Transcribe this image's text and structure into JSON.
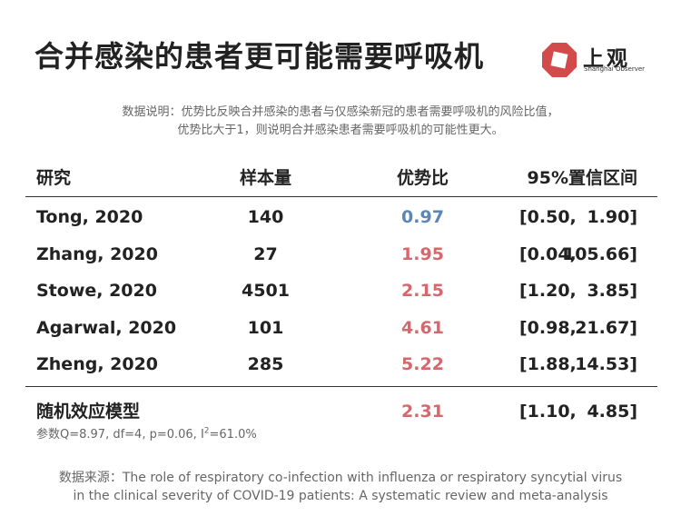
{
  "title": "合并感染的患者更可能需要呼吸机",
  "logo": {
    "name": "上观",
    "subtitle": "Shanghai Observer",
    "icon": "octagon-square-logo",
    "color": "#d24a4a"
  },
  "note": {
    "line1": "数据说明：优势比反映合并感染的患者与仅感染新冠的患者需要呼吸机的风险比值，",
    "line2": "优势比大于1，则说明合并感染患者需要呼吸机的可能性更大。"
  },
  "chart_data": {
    "type": "table",
    "columns": [
      "研究",
      "样本量",
      "优势比",
      "95%置信区间"
    ],
    "rows": [
      {
        "study": "Tong, 2020",
        "n": "140",
        "or": "0.97",
        "ci_low": "[0.50,",
        "ci_high": "1.90]",
        "or_color": "#5b86b7"
      },
      {
        "study": "Zhang, 2020",
        "n": "27",
        "or": "1.95",
        "ci_low": "[0.04,",
        "ci_high": "105.66]",
        "or_color": "#d6676d"
      },
      {
        "study": "Stowe, 2020",
        "n": "4501",
        "or": "2.15",
        "ci_low": "[1.20,",
        "ci_high": "3.85]",
        "or_color": "#d6676d"
      },
      {
        "study": "Agarwal, 2020",
        "n": "101",
        "or": "4.61",
        "ci_low": "[0.98,",
        "ci_high": "21.67]",
        "or_color": "#d6676d"
      },
      {
        "study": "Zheng, 2020",
        "n": "285",
        "or": "5.22",
        "ci_low": "[1.88,",
        "ci_high": "14.53]",
        "or_color": "#d6676d"
      }
    ],
    "summary": {
      "label": "随机效应模型",
      "or": "2.31",
      "ci_low": "[1.10,",
      "ci_high": "4.85]",
      "or_color": "#d6676d",
      "stats_prefix": "参数Q=8.97, df=4, p=0.06, I",
      "stats_sup": "2",
      "stats_suffix": "=61.0%"
    }
  },
  "source": {
    "line1": "数据来源：The role of respiratory co-infection with influenza or respiratory syncytial virus",
    "line2": "in the clinical severity of COVID-19 patients: A systematic review and meta-analysis"
  }
}
